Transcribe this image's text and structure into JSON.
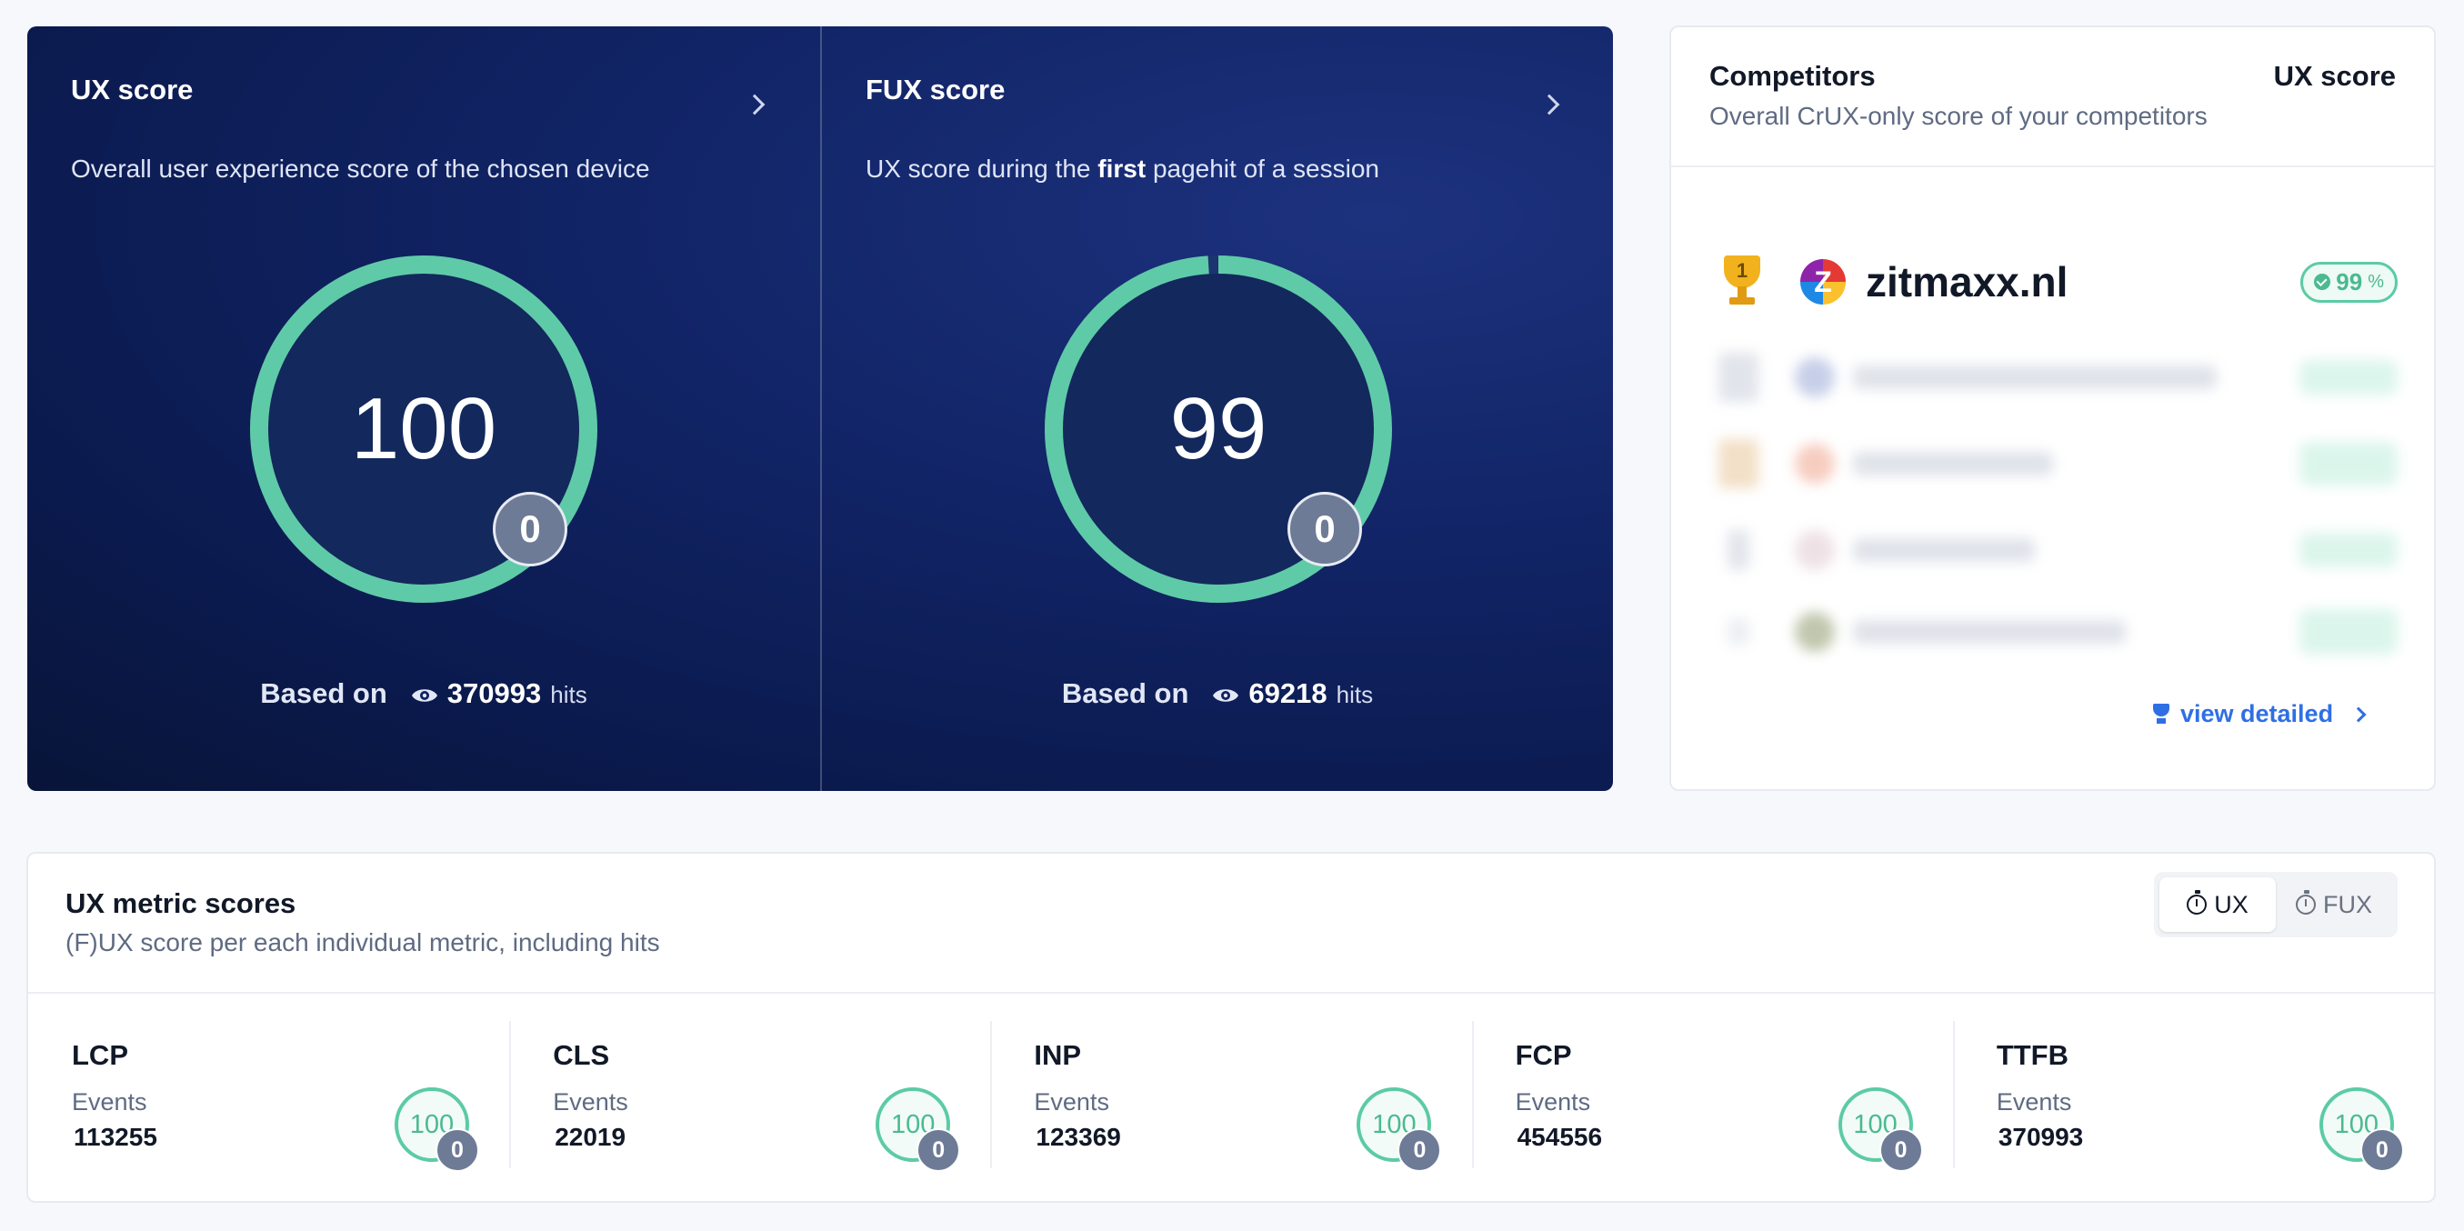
{
  "ux_card": {
    "title": "UX score",
    "description": "Overall user experience score of the chosen device",
    "score": "100",
    "score_fraction": 1.0,
    "badge": "0",
    "based_on": "Based on",
    "hits": "370993",
    "hits_unit": "hits"
  },
  "fux_card": {
    "title": "FUX score",
    "description_pre": "UX score during the",
    "description_bold": "first",
    "description_post": "pagehit of a session",
    "score": "99",
    "score_fraction": 0.99,
    "badge": "0",
    "based_on": "Based on",
    "hits": "69218",
    "hits_unit": "hits"
  },
  "competitors": {
    "title": "Competitors",
    "subtitle": "Overall CrUX-only score of your competitors",
    "column_label": "UX score",
    "top": {
      "rank": "1",
      "name": "zitmaxx.nl",
      "score": "99",
      "unit": "%"
    },
    "view_detailed": "view detailed",
    "colors": {
      "accent": "#2f6fe4",
      "good": "#5ccba4"
    }
  },
  "metrics": {
    "title": "UX metric scores",
    "subtitle": "(F)UX score per each individual metric, including hits",
    "toggle": {
      "ux": "UX",
      "fux": "FUX",
      "active": "UX"
    },
    "events_label": "Events",
    "items": [
      {
        "name": "LCP",
        "events": "113255",
        "score": "100",
        "badge": "0"
      },
      {
        "name": "CLS",
        "events": "22019",
        "score": "100",
        "badge": "0"
      },
      {
        "name": "INP",
        "events": "123369",
        "score": "100",
        "badge": "0"
      },
      {
        "name": "FCP",
        "events": "454556",
        "score": "100",
        "badge": "0"
      },
      {
        "name": "TTFB",
        "events": "370993",
        "score": "100",
        "badge": "0"
      }
    ]
  }
}
